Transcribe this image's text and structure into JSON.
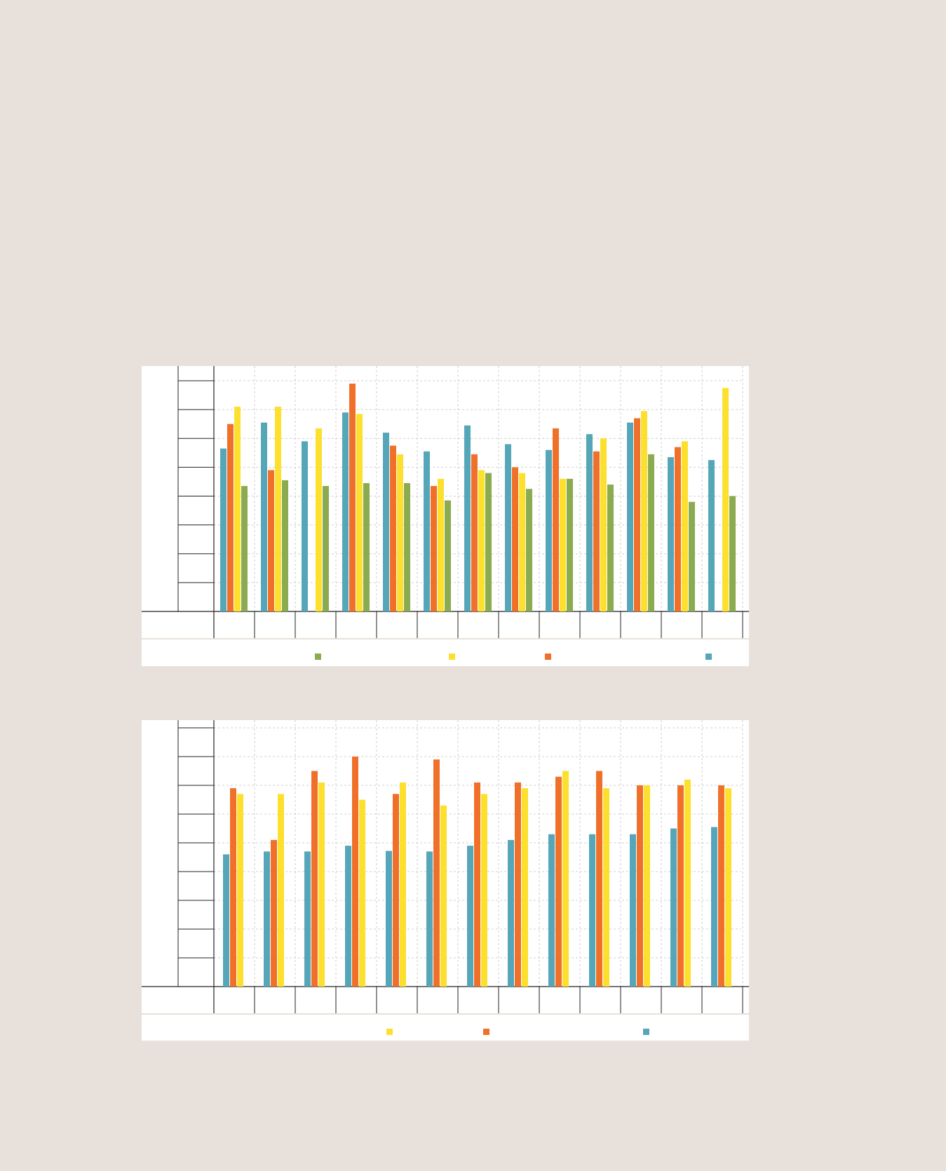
{
  "colors": {
    "green": "#8aab4f",
    "yellow": "#fde02e",
    "orange": "#f0702a",
    "blue": "#56a6b9",
    "grid": "#cfcfcf",
    "axis": "#222222"
  },
  "chart_data": [
    {
      "type": "bar",
      "title": "",
      "xlabel": "",
      "ylabel": "",
      "ylim": [
        0,
        8
      ],
      "grid": true,
      "legend_position": "bottom",
      "categories": [
        "",
        "",
        "",
        "",
        "",
        "",
        "",
        "",
        "",
        "",
        "",
        "",
        ""
      ],
      "series": [
        {
          "color": "#56a6b9",
          "values": [
            5.65,
            6.55,
            5.9,
            6.9,
            6.2,
            5.55,
            6.45,
            5.8,
            5.6,
            6.15,
            6.55,
            5.35,
            5.25
          ]
        },
        {
          "color": "#f0702a",
          "values": [
            6.5,
            4.9,
            0,
            7.9,
            5.75,
            4.35,
            5.45,
            5.0,
            6.35,
            5.55,
            6.7,
            5.7,
            0
          ]
        },
        {
          "color": "#fde02e",
          "values": [
            7.1,
            7.1,
            6.35,
            6.85,
            5.45,
            4.6,
            4.9,
            4.8,
            4.6,
            6.0,
            6.95,
            5.9,
            7.75
          ]
        },
        {
          "color": "#8aab4f",
          "values": [
            4.35,
            4.55,
            4.35,
            4.45,
            4.45,
            3.85,
            4.8,
            4.25,
            4.6,
            4.4,
            5.45,
            3.8,
            4.0
          ]
        }
      ],
      "legend_order": [
        "#8aab4f",
        "#fde02e",
        "#f0702a",
        "#56a6b9"
      ]
    },
    {
      "type": "bar",
      "title": "",
      "xlabel": "",
      "ylabel": "",
      "ylim": [
        0,
        9
      ],
      "grid": true,
      "legend_position": "bottom",
      "categories": [
        "",
        "",
        "",
        "",
        "",
        "",
        "",
        "",
        "",
        "",
        "",
        "",
        ""
      ],
      "series": [
        {
          "color": "#56a6b9",
          "values": [
            4.6,
            4.7,
            4.7,
            4.9,
            4.72,
            4.7,
            4.9,
            5.1,
            5.3,
            5.3,
            5.3,
            5.5,
            5.55
          ]
        },
        {
          "color": "#f0702a",
          "values": [
            6.9,
            5.1,
            7.5,
            8.0,
            6.7,
            7.9,
            7.1,
            7.1,
            7.3,
            7.5,
            7.0,
            7.0,
            7.0
          ]
        },
        {
          "color": "#fde02e",
          "values": [
            6.7,
            6.7,
            7.1,
            6.5,
            7.1,
            6.3,
            6.7,
            6.9,
            7.5,
            6.9,
            7.0,
            7.2,
            6.9
          ]
        }
      ],
      "legend_order": [
        "#fde02e",
        "#f0702a",
        "#56a6b9"
      ]
    }
  ]
}
